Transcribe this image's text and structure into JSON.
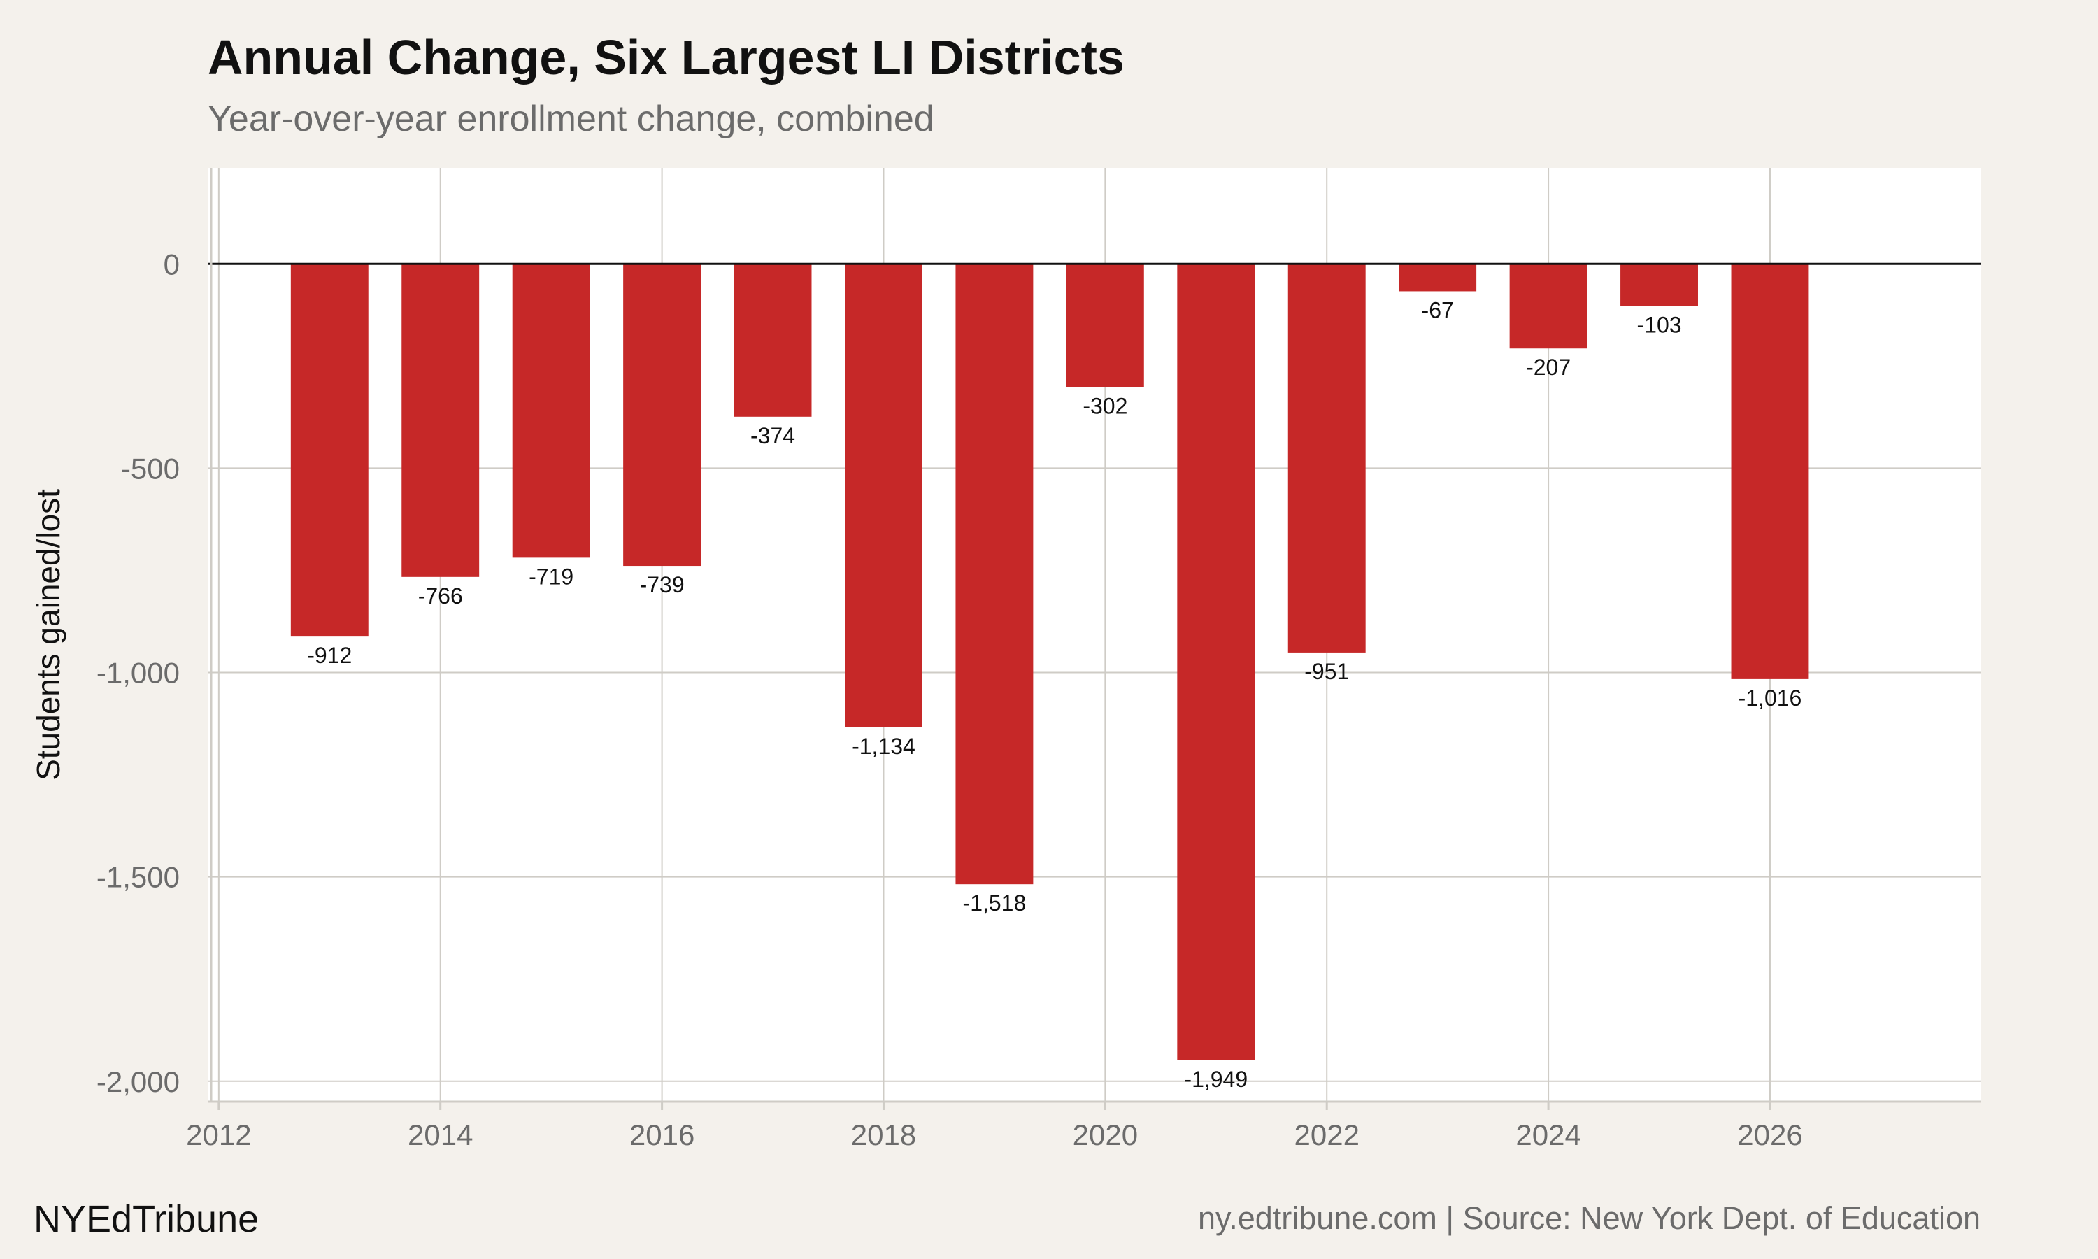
{
  "header": {
    "title": "Annual Change, Six Largest LI Districts",
    "subtitle": "Year-over-year enrollment change, combined"
  },
  "footer": {
    "brand": "NYEdTribune",
    "credit": "ny.edtribune.com | Source: New York Dept. of Education"
  },
  "colors": {
    "bar": "#c62828",
    "plot_background": "#ffffff",
    "page_background": "#f4f1ec",
    "grid": "#cfccc6",
    "zero_line": "#111111"
  },
  "chart_data": {
    "type": "bar",
    "ylabel": "Students gained/lost",
    "x": [
      2013,
      2014,
      2015,
      2016,
      2017,
      2018,
      2019,
      2020,
      2021,
      2022,
      2023,
      2024,
      2025,
      2026
    ],
    "values": [
      -912,
      -766,
      -719,
      -739,
      -374,
      -1134,
      -1518,
      -302,
      -1949,
      -951,
      -67,
      -207,
      -103,
      -1016
    ],
    "data_labels": [
      "-912",
      "-766",
      "-719",
      "-739",
      "-374",
      "-1,134",
      "-1,518",
      "-302",
      "-1,949",
      "-951",
      "-67",
      "-207",
      "-103",
      "-1,016"
    ],
    "xlim": [
      2011.9,
      2027.9
    ],
    "ylim": [
      -2050,
      235
    ],
    "x_ticks": [
      2012,
      2014,
      2016,
      2018,
      2020,
      2022,
      2024,
      2026
    ],
    "x_tick_labels": [
      "2012",
      "2014",
      "2016",
      "2018",
      "2020",
      "2022",
      "2024",
      "2026"
    ],
    "y_ticks": [
      0,
      -500,
      -1000,
      -1500,
      -2000
    ],
    "y_tick_labels": [
      "0",
      "-500",
      "-1,000",
      "-1,500",
      "-2,000"
    ],
    "grid": true,
    "legend": "none"
  }
}
